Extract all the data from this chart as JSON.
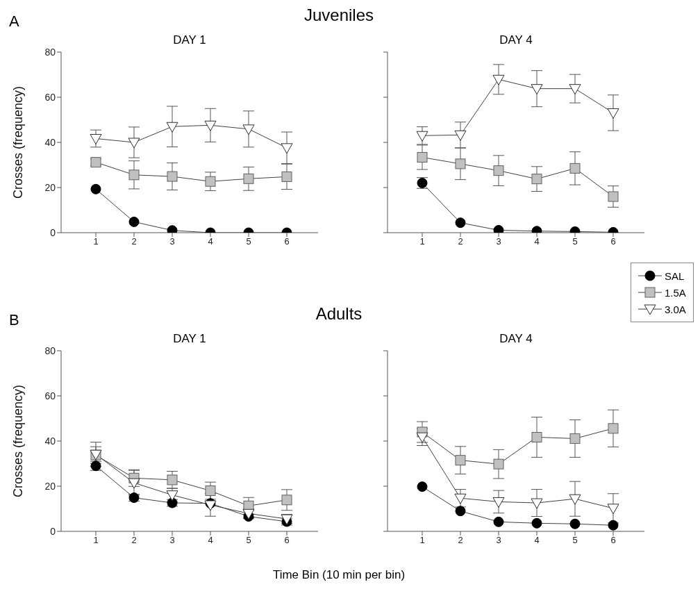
{
  "chart_data": [
    {
      "type": "line",
      "title": "DAY 1",
      "annotations": [
        "A",
        "Juveniles"
      ],
      "ylabel": "Crosses (frequency)",
      "categories": [
        "1",
        "2",
        "3",
        "4",
        "5",
        "6"
      ],
      "ylim": [
        0,
        80
      ],
      "yticks": [
        0,
        20,
        40,
        60,
        80
      ],
      "series": [
        {
          "color": "#000000",
          "marker": "circle",
          "values": [
            19.3,
            4.8,
            1.0,
            0,
            0,
            0
          ],
          "errors": [
            null,
            null,
            null,
            null,
            null,
            null
          ]
        },
        {
          "color": "#c0c0c0",
          "marker": "square",
          "values": [
            31.2,
            25.6,
            24.9,
            22.7,
            23.9,
            24.8
          ],
          "errors": [
            1.5,
            6.2,
            6,
            4.1,
            5.2,
            5.6
          ]
        },
        {
          "color": "#ffffff",
          "marker": "triangle",
          "values": [
            41.7,
            40,
            47,
            47.6,
            45.9,
            37.6
          ],
          "errors": [
            3.8,
            6.8,
            9,
            7.4,
            8,
            7
          ]
        }
      ]
    },
    {
      "type": "line",
      "title": "DAY 4",
      "legend": "bottom right",
      "tick_labels": "x",
      "categories": [
        "1",
        "2",
        "3",
        "4",
        "5",
        "6"
      ],
      "ylim": [
        0,
        80
      ],
      "yticks": [
        0,
        20,
        40,
        60,
        80
      ],
      "series": [
        {
          "name": "SAL",
          "color": "#000000",
          "marker": "circle",
          "values": [
            22.0,
            4.4,
            1.1,
            0.7,
            0.5,
            0.2
          ],
          "errors": [
            2.4,
            null,
            null,
            null,
            null,
            null
          ]
        },
        {
          "name": "1.5A",
          "color": "#c0c0c0",
          "marker": "square",
          "values": [
            33.4,
            30.5,
            27.5,
            23.8,
            28.5,
            16.0
          ],
          "errors": [
            5.4,
            7,
            6.7,
            5.5,
            7.3,
            4.7
          ]
        },
        {
          "name": "3.0A",
          "color": "#ffffff",
          "marker": "triangle",
          "values": [
            43.0,
            43.3,
            67.9,
            63.8,
            63.8,
            53.1
          ],
          "errors": [
            3.9,
            5.7,
            6.6,
            8,
            6.3,
            7.9
          ]
        }
      ]
    },
    {
      "type": "line",
      "title": "DAY 1",
      "annotations": [
        "B",
        "Adults"
      ],
      "ylabel": "Crosses (frequency)",
      "xlabel": "Time Bin (10 min per bin)",
      "categories": [
        "1",
        "2",
        "3",
        "4",
        "5",
        "6"
      ],
      "ylim": [
        0,
        80
      ],
      "yticks": [
        0,
        20,
        40,
        60,
        80
      ],
      "series": [
        {
          "color": "#000000",
          "marker": "circle",
          "values": [
            29.0,
            14.9,
            12.6,
            12.4,
            6.6,
            4.3
          ],
          "errors": [
            2,
            1.5,
            1.5,
            null,
            1,
            1.5
          ]
        },
        {
          "color": "#c0c0c0",
          "marker": "square",
          "values": [
            33.8,
            23.6,
            22.8,
            18.0,
            11.3,
            13.9
          ],
          "errors": [
            3.7,
            3.7,
            3.8,
            3.8,
            3.7,
            4.6
          ]
        },
        {
          "color": "#ffffff",
          "marker": "triangle",
          "values": [
            34.1,
            21.5,
            16.1,
            11.7,
            7.9,
            5.5
          ],
          "errors": [
            5.4,
            5.5,
            3,
            5,
            2,
            2
          ]
        }
      ]
    },
    {
      "type": "line",
      "title": "DAY 4",
      "tick_labels": "x",
      "categories": [
        "1",
        "2",
        "3",
        "4",
        "5",
        "6"
      ],
      "ylim": [
        0,
        80
      ],
      "yticks": [
        0,
        20,
        40,
        60,
        80
      ],
      "series": [
        {
          "color": "#000000",
          "marker": "circle",
          "values": [
            19.8,
            9.0,
            4.2,
            3.6,
            3.3,
            2.7
          ],
          "errors": [
            null,
            null,
            null,
            null,
            null,
            null
          ]
        },
        {
          "color": "#c0c0c0",
          "marker": "square",
          "values": [
            44.0,
            31.5,
            29.8,
            41.7,
            41.1,
            45.6
          ],
          "errors": [
            4.6,
            6.1,
            6.4,
            8.9,
            8.3,
            8.2
          ]
        },
        {
          "color": "#ffffff",
          "marker": "triangle",
          "values": [
            41.8,
            14.7,
            13.1,
            12.6,
            14.4,
            10.2
          ],
          "errors": [
            3.8,
            3.9,
            5,
            6,
            7.7,
            6.5
          ]
        }
      ]
    }
  ]
}
